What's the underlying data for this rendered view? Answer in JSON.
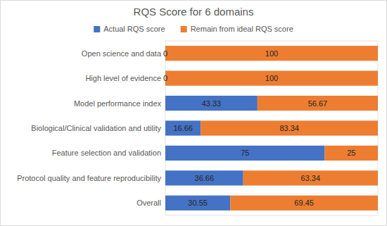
{
  "chart_data": {
    "type": "bar",
    "orientation": "horizontal",
    "stacked": true,
    "title": "RQS Score for 6 domains",
    "categories": [
      "Open science and data",
      "High level of evidence",
      "Model performance index",
      "Biological/Clinical validation and utility",
      "Feature selection and validation",
      "Protocol quality and feature reproducibility",
      "Overall"
    ],
    "series": [
      {
        "name": "Actual RQS score",
        "color": "#4472c4",
        "values": [
          0,
          0,
          43.33,
          16.66,
          75,
          36.66,
          30.55
        ]
      },
      {
        "name": "Remain from ideal RQS score",
        "color": "#ed7d31",
        "values": [
          100,
          100,
          56.67,
          83.34,
          25,
          63.34,
          69.45
        ]
      }
    ],
    "xlim": [
      0,
      100
    ],
    "grid": false,
    "legend": "top",
    "data_labels": true,
    "tick_labels": false
  }
}
